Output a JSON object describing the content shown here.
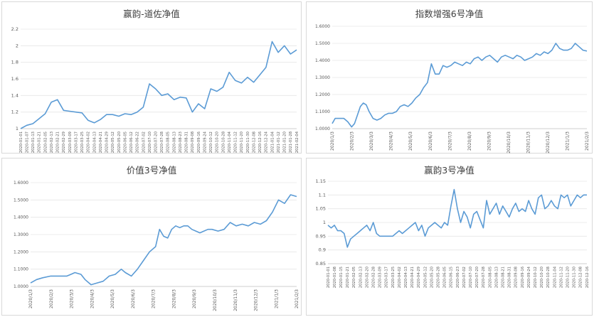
{
  "chart_data": [
    {
      "type": "line",
      "title": "赢韵-道佐净值",
      "color": "#5b9bd5",
      "ylim": [
        1,
        2.2
      ],
      "yticks": [
        "1",
        "1.2",
        "1.4",
        "1.6",
        "1.8",
        "2",
        "2.2"
      ],
      "xticks": [
        "2020-01-01",
        "2020-01-07",
        "2020-01-13",
        "2020-01-21",
        "2020-02-05",
        "2020-02-13",
        "2020-02-21",
        "2020-02-29",
        "2020-03-09",
        "2020-03-17",
        "2020-03-25",
        "2020-04-02",
        "2020-04-13",
        "2020-04-21",
        "2020-04-29",
        "2020-05-12",
        "2020-05-20",
        "2020-06-05",
        "2020-06-12",
        "2020-06-22",
        "2020-07-02",
        "2020-07-10",
        "2020-07-20",
        "2020-07-28",
        "2020-08-05",
        "2020-08-13",
        "2020-08-23",
        "2020-08-31",
        "2020-09-08",
        "2020-09-16",
        "2020-09-24",
        "2020-10-12",
        "2020-10-20",
        "2020-10-28",
        "2020-11-04",
        "2020-11-12",
        "2020-11-20",
        "2020-11-30",
        "2020-12-08",
        "2020-12-16",
        "2020-12-24",
        "2021-01-04",
        "2021-01-12",
        "2021-01-20",
        "2021-01-28",
        "2021-02-04"
      ],
      "x": [
        0,
        1,
        2,
        3,
        4,
        5,
        6,
        7,
        8,
        9,
        10,
        11,
        12,
        13,
        14,
        15,
        16,
        17,
        18,
        19,
        20,
        21,
        22,
        23,
        24,
        25,
        26,
        27,
        28,
        29,
        30,
        31,
        32,
        33,
        34,
        35,
        36,
        37,
        38,
        39,
        40,
        41,
        42,
        43,
        44,
        45
      ],
      "y": [
        1.0,
        1.04,
        1.06,
        1.12,
        1.18,
        1.32,
        1.35,
        1.22,
        1.21,
        1.2,
        1.19,
        1.1,
        1.07,
        1.11,
        1.17,
        1.17,
        1.15,
        1.18,
        1.17,
        1.2,
        1.26,
        1.54,
        1.48,
        1.4,
        1.42,
        1.35,
        1.38,
        1.37,
        1.2,
        1.3,
        1.24,
        1.48,
        1.45,
        1.5,
        1.68,
        1.58,
        1.55,
        1.62,
        1.56,
        1.65,
        1.74,
        2.05,
        1.92,
        2.0,
        1.9,
        1.95
      ]
    },
    {
      "type": "line",
      "title": "指数增强6号净值",
      "color": "#5b9bd5",
      "ylim": [
        1.0,
        1.6
      ],
      "yticks": [
        "1.0000",
        "1.1000",
        "1.2000",
        "1.3000",
        "1.4000",
        "1.5000",
        "1.6000"
      ],
      "xticks": [
        "2020/1/3",
        "2020/2/3",
        "2020/3/3",
        "2020/4/3",
        "2020/5/3",
        "2020/6/3",
        "2020/7/3",
        "2020/8/3",
        "2020/9/3",
        "2020/10/3",
        "2020/11/3",
        "2020/12/3",
        "2021/1/3",
        "2021/2/3"
      ],
      "x": [
        0,
        0.15,
        0.35,
        0.6,
        0.8,
        1.0,
        1.15,
        1.3,
        1.45,
        1.6,
        1.75,
        1.9,
        2.1,
        2.3,
        2.5,
        2.7,
        2.9,
        3.1,
        3.3,
        3.5,
        3.7,
        3.9,
        4.1,
        4.3,
        4.5,
        4.7,
        4.9,
        5.1,
        5.3,
        5.5,
        5.7,
        5.9,
        6.1,
        6.3,
        6.5,
        6.7,
        6.9,
        7.1,
        7.3,
        7.5,
        7.7,
        7.9,
        8.1,
        8.3,
        8.5,
        8.7,
        8.9,
        9.1,
        9.3,
        9.5,
        9.7,
        9.9,
        10.1,
        10.3,
        10.5,
        10.7,
        10.9,
        11.1,
        11.3,
        11.5,
        11.7,
        11.9,
        12.1,
        12.3,
        12.5,
        12.7,
        12.9,
        13.1
      ],
      "y": [
        1.03,
        1.06,
        1.06,
        1.06,
        1.04,
        1.01,
        1.03,
        1.08,
        1.13,
        1.15,
        1.14,
        1.1,
        1.06,
        1.05,
        1.06,
        1.08,
        1.09,
        1.09,
        1.1,
        1.13,
        1.14,
        1.13,
        1.15,
        1.18,
        1.2,
        1.24,
        1.27,
        1.38,
        1.32,
        1.32,
        1.37,
        1.36,
        1.37,
        1.39,
        1.38,
        1.37,
        1.39,
        1.38,
        1.41,
        1.42,
        1.4,
        1.42,
        1.43,
        1.41,
        1.39,
        1.42,
        1.43,
        1.42,
        1.41,
        1.43,
        1.42,
        1.4,
        1.41,
        1.42,
        1.44,
        1.43,
        1.45,
        1.44,
        1.46,
        1.5,
        1.47,
        1.46,
        1.46,
        1.47,
        1.5,
        1.48,
        1.46,
        1.455
      ]
    },
    {
      "type": "line",
      "title": "价值3号净值",
      "color": "#5b9bd5",
      "ylim": [
        1.0,
        1.6
      ],
      "yticks": [
        "1.0000",
        "1.1000",
        "1.2000",
        "1.3000",
        "1.4000",
        "1.5000",
        "1.6000"
      ],
      "xticks": [
        "2020/1/3",
        "2020/2/3",
        "2020/3/3",
        "2020/4/3",
        "2020/5/3",
        "2020/6/3",
        "2020/7/3",
        "2020/8/3",
        "2020/9/3",
        "2020/10/3",
        "2020/11/3",
        "2020/12/3",
        "2021/1/3",
        "2021/2/3"
      ],
      "x": [
        0,
        0.3,
        0.6,
        1.0,
        1.3,
        1.6,
        1.8,
        2.0,
        2.2,
        2.5,
        2.7,
        3.0,
        3.3,
        3.6,
        3.9,
        4.2,
        4.5,
        4.7,
        5.0,
        5.3,
        5.6,
        5.9,
        6.2,
        6.4,
        6.6,
        6.8,
        7.0,
        7.2,
        7.4,
        7.6,
        7.8,
        8.0,
        8.2,
        8.4,
        8.6,
        8.8,
        9.0,
        9.3,
        9.6,
        9.9,
        10.2,
        10.5,
        10.8,
        11.1,
        11.4,
        11.7,
        12.0,
        12.3,
        12.6,
        12.9,
        13.2
      ],
      "y": [
        1.02,
        1.04,
        1.05,
        1.06,
        1.06,
        1.06,
        1.06,
        1.07,
        1.08,
        1.07,
        1.04,
        1.01,
        1.02,
        1.03,
        1.06,
        1.07,
        1.1,
        1.08,
        1.06,
        1.1,
        1.15,
        1.2,
        1.23,
        1.33,
        1.29,
        1.28,
        1.33,
        1.35,
        1.34,
        1.35,
        1.35,
        1.33,
        1.32,
        1.31,
        1.32,
        1.33,
        1.33,
        1.32,
        1.33,
        1.37,
        1.35,
        1.36,
        1.35,
        1.37,
        1.36,
        1.38,
        1.43,
        1.5,
        1.48,
        1.53,
        1.52
      ]
    },
    {
      "type": "line",
      "title": "赢韵3号净值",
      "color": "#5b9bd5",
      "ylim": [
        0.85,
        1.15
      ],
      "yticks": [
        "0.85",
        "0.9",
        "0.95",
        "1",
        "1.05",
        "1.1",
        "1.15"
      ],
      "xticks": [
        "2020-01-01",
        "2020-01-08",
        "2020-01-15",
        "2020-01-21",
        "2020-02-05",
        "2020-02-13",
        "2020-02-20",
        "2020-02-28",
        "2020-03-09",
        "2020-03-17",
        "2020-03-25",
        "2020-04-02",
        "2020-04-13",
        "2020-04-21",
        "2020-04-29",
        "2020-05-12",
        "2020-05-20",
        "2020-05-28",
        "2020-06-05",
        "2020-06-15",
        "2020-06-23",
        "2020-07-02",
        "2020-07-10",
        "2020-07-20",
        "2020-07-28",
        "2020-08-05",
        "2020-08-13",
        "2020-08-21",
        "2020-08-31",
        "2020-09-08",
        "2020-09-16",
        "2020-09-24",
        "2020-10-12",
        "2020-10-20",
        "2020-10-28",
        "2020-11-04",
        "2020-11-12",
        "2020-11-20",
        "2020-11-30",
        "2020-12-08",
        "2020-12-16"
      ],
      "x": [
        0,
        0.5,
        1,
        1.5,
        2,
        2.5,
        3,
        3.5,
        4,
        4.5,
        5,
        5.5,
        6,
        6.5,
        7,
        7.5,
        8,
        8.5,
        9,
        9.5,
        10,
        10.5,
        11,
        11.5,
        12,
        12.5,
        13,
        13.5,
        14,
        14.5,
        15,
        15.5,
        16,
        16.5,
        17,
        17.5,
        18,
        18.5,
        19,
        19.5,
        20,
        20.5,
        21,
        21.5,
        22,
        22.5,
        23,
        23.5,
        24,
        24.5,
        25,
        25.5,
        26,
        26.5,
        27,
        27.5,
        28,
        28.5,
        29,
        29.5,
        30,
        30.5,
        31,
        31.5,
        32,
        32.5,
        33,
        33.5,
        34,
        34.5,
        35,
        35.5,
        36,
        36.5,
        37,
        37.5,
        38,
        38.5,
        39,
        39.5,
        40
      ],
      "y": [
        0.99,
        0.98,
        0.99,
        0.97,
        0.97,
        0.96,
        0.91,
        0.94,
        0.95,
        0.96,
        0.97,
        0.98,
        0.99,
        0.97,
        1.0,
        0.96,
        0.95,
        0.95,
        0.95,
        0.95,
        0.95,
        0.96,
        0.97,
        0.96,
        0.97,
        0.98,
        0.99,
        1.0,
        0.97,
        0.99,
        0.95,
        0.98,
        0.99,
        1.0,
        0.99,
        0.98,
        1.0,
        0.99,
        1.06,
        1.12,
        1.05,
        1.0,
        1.04,
        1.02,
        0.98,
        1.03,
        1.04,
        1.01,
        0.98,
        1.08,
        1.03,
        1.05,
        1.07,
        1.03,
        1.06,
        1.04,
        1.02,
        1.05,
        1.07,
        1.04,
        1.05,
        1.04,
        1.08,
        1.05,
        1.03,
        1.09,
        1.1,
        1.05,
        1.06,
        1.08,
        1.06,
        1.05,
        1.1,
        1.09,
        1.1,
        1.06,
        1.08,
        1.1,
        1.09,
        1.1,
        1.1
      ]
    }
  ]
}
